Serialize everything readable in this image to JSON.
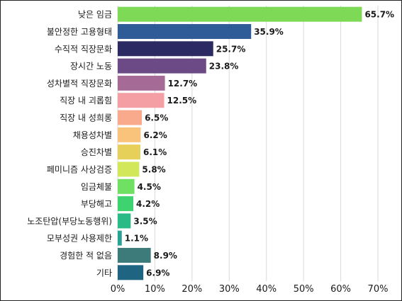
{
  "chart_data": {
    "type": "bar",
    "orientation": "horizontal",
    "title": "",
    "xlabel": "",
    "ylabel": "",
    "xlim": [
      0,
      70
    ],
    "x_ticks": [
      0,
      10,
      20,
      30,
      40,
      50,
      60,
      70
    ],
    "tick_suffix": "%",
    "grid": "vertical",
    "categories": [
      "낮은 임금",
      "불안정한 고용형태",
      "수직적 직장문화",
      "장시간 노동",
      "성차별적 직장문화",
      "직장 내 괴롭힘",
      "직장 내 성희롱",
      "채용성차별",
      "승진차별",
      "페미니즘 사상검증",
      "임금체불",
      "부당해고",
      "노조탄압(부당노동행위)",
      "모부성권 사용제한",
      "경험한 적 없음",
      "기타"
    ],
    "values": [
      65.7,
      35.9,
      25.7,
      23.8,
      12.7,
      12.5,
      6.5,
      6.2,
      6.1,
      5.8,
      4.5,
      4.2,
      3.5,
      1.1,
      8.9,
      6.9
    ],
    "value_labels": [
      "65.7%",
      "35.9%",
      "25.7%",
      "23.8%",
      "12.7%",
      "12.5%",
      "6.5%",
      "6.2%",
      "6.1%",
      "5.8%",
      "4.5%",
      "4.2%",
      "3.5%",
      "1.1%",
      "8.9%",
      "6.9%"
    ],
    "colors": [
      "#7ed957",
      "#2f5c96",
      "#2b2a62",
      "#6b4a86",
      "#a66a97",
      "#f49fa3",
      "#f9a98c",
      "#f9c37c",
      "#e6d05a",
      "#d2e85a",
      "#6fe061",
      "#3ed36e",
      "#2aba86",
      "#2aa294",
      "#3c7b7a",
      "#1f6480"
    ]
  }
}
